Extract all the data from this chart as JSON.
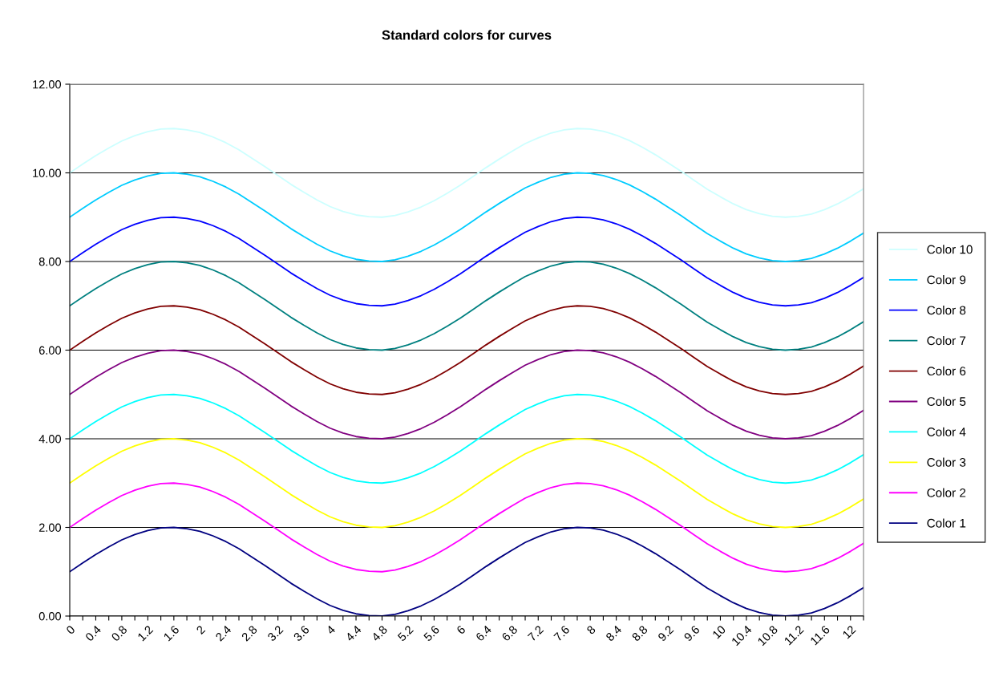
{
  "chart_data": {
    "type": "line",
    "title": "Standard colors for curves",
    "categories": [
      "0",
      null,
      "0.4",
      null,
      "0.8",
      null,
      "1.2",
      null,
      "1.6",
      null,
      "2",
      null,
      "2.4",
      null,
      "2.8",
      null,
      "3.2",
      null,
      "3.6",
      null,
      "4",
      null,
      "4.4",
      null,
      "4.8",
      null,
      "5.2",
      null,
      "5.6",
      null,
      "6",
      null,
      "6.4",
      null,
      "6.8",
      null,
      "7.2",
      null,
      "7.6",
      null,
      "8",
      null,
      "8.4",
      null,
      "8.8",
      null,
      "9.2",
      null,
      "9.6",
      null,
      "10",
      null,
      "10.4",
      null,
      "10.8",
      null,
      "11.2",
      null,
      "11.6",
      null,
      "12",
      null
    ],
    "series": [
      {
        "name": "Color 1",
        "color": "#000080",
        "values": [
          1,
          1.2,
          1.39,
          1.56,
          1.72,
          1.84,
          1.93,
          1.99,
          2,
          1.97,
          1.91,
          1.81,
          1.68,
          1.52,
          1.33,
          1.14,
          0.94,
          0.74,
          0.56,
          0.39,
          0.24,
          0.13,
          0.05,
          0.01,
          0,
          0.04,
          0.12,
          0.23,
          0.37,
          0.54,
          0.72,
          0.92,
          1.12,
          1.31,
          1.49,
          1.66,
          1.79,
          1.9,
          1.97,
          2,
          1.99,
          1.94,
          1.85,
          1.73,
          1.58,
          1.41,
          1.22,
          1.03,
          0.83,
          0.63,
          0.46,
          0.3,
          0.17,
          0.08,
          0.02,
          0,
          0.02,
          0.07,
          0.17,
          0.3,
          0.46,
          0.64
        ]
      },
      {
        "name": "Color 2",
        "color": "#ff00ff",
        "values": [
          2,
          2.2,
          2.39,
          2.56,
          2.72,
          2.84,
          2.93,
          2.99,
          3,
          2.97,
          2.91,
          2.81,
          2.68,
          2.52,
          2.33,
          2.14,
          1.94,
          1.74,
          1.56,
          1.39,
          1.24,
          1.13,
          1.05,
          1.01,
          1,
          1.04,
          1.12,
          1.23,
          1.37,
          1.54,
          1.72,
          1.92,
          2.12,
          2.31,
          2.49,
          2.66,
          2.79,
          2.9,
          2.97,
          3,
          2.99,
          2.94,
          2.85,
          2.73,
          2.58,
          2.41,
          2.22,
          2.03,
          1.83,
          1.63,
          1.46,
          1.3,
          1.17,
          1.08,
          1.02,
          1,
          1.02,
          1.07,
          1.17,
          1.3,
          1.46,
          1.64
        ]
      },
      {
        "name": "Color 3",
        "color": "#ffff00",
        "values": [
          3,
          3.2,
          3.39,
          3.56,
          3.72,
          3.84,
          3.93,
          3.99,
          4,
          3.97,
          3.91,
          3.81,
          3.68,
          3.52,
          3.33,
          3.14,
          2.94,
          2.74,
          2.56,
          2.39,
          2.24,
          2.13,
          2.05,
          2.01,
          2,
          2.04,
          2.12,
          2.23,
          2.37,
          2.54,
          2.72,
          2.92,
          3.12,
          3.31,
          3.49,
          3.66,
          3.79,
          3.9,
          3.97,
          4,
          3.99,
          3.94,
          3.85,
          3.73,
          3.58,
          3.41,
          3.22,
          3.03,
          2.83,
          2.63,
          2.46,
          2.3,
          2.17,
          2.08,
          2.02,
          2,
          2.02,
          2.07,
          2.17,
          2.3,
          2.46,
          2.64
        ]
      },
      {
        "name": "Color 4",
        "color": "#00ffff",
        "values": [
          4,
          4.2,
          4.39,
          4.56,
          4.72,
          4.84,
          4.93,
          4.99,
          5,
          4.97,
          4.91,
          4.81,
          4.68,
          4.52,
          4.33,
          4.14,
          3.94,
          3.74,
          3.56,
          3.39,
          3.24,
          3.13,
          3.05,
          3.01,
          3,
          3.04,
          3.12,
          3.23,
          3.37,
          3.54,
          3.72,
          3.92,
          4.12,
          4.31,
          4.49,
          4.66,
          4.79,
          4.9,
          4.97,
          5,
          4.99,
          4.94,
          4.85,
          4.73,
          4.58,
          4.41,
          4.22,
          4.03,
          3.83,
          3.63,
          3.46,
          3.3,
          3.17,
          3.08,
          3.02,
          3,
          3.02,
          3.07,
          3.17,
          3.3,
          3.46,
          3.64
        ]
      },
      {
        "name": "Color 5",
        "color": "#800080",
        "values": [
          5,
          5.2,
          5.39,
          5.56,
          5.72,
          5.84,
          5.93,
          5.99,
          6,
          5.97,
          5.91,
          5.81,
          5.68,
          5.52,
          5.33,
          5.14,
          4.94,
          4.74,
          4.56,
          4.39,
          4.24,
          4.13,
          4.05,
          4.01,
          4,
          4.04,
          4.12,
          4.23,
          4.37,
          4.54,
          4.72,
          4.92,
          5.12,
          5.31,
          5.49,
          5.66,
          5.79,
          5.9,
          5.97,
          6,
          5.99,
          5.94,
          5.85,
          5.73,
          5.58,
          5.41,
          5.22,
          5.03,
          4.83,
          4.63,
          4.46,
          4.3,
          4.17,
          4.08,
          4.02,
          4,
          4.02,
          4.07,
          4.17,
          4.3,
          4.46,
          4.64
        ]
      },
      {
        "name": "Color 6",
        "color": "#800000",
        "values": [
          6,
          6.2,
          6.39,
          6.56,
          6.72,
          6.84,
          6.93,
          6.99,
          7,
          6.97,
          6.91,
          6.81,
          6.68,
          6.52,
          6.33,
          6.14,
          5.94,
          5.74,
          5.56,
          5.39,
          5.24,
          5.13,
          5.05,
          5.01,
          5,
          5.04,
          5.12,
          5.23,
          5.37,
          5.54,
          5.72,
          5.92,
          6.12,
          6.31,
          6.49,
          6.66,
          6.79,
          6.9,
          6.97,
          7,
          6.99,
          6.94,
          6.85,
          6.73,
          6.58,
          6.41,
          6.22,
          6.03,
          5.83,
          5.63,
          5.46,
          5.3,
          5.17,
          5.08,
          5.02,
          5,
          5.02,
          5.07,
          5.17,
          5.3,
          5.46,
          5.64
        ]
      },
      {
        "name": "Color 7",
        "color": "#008080",
        "values": [
          7,
          7.2,
          7.39,
          7.56,
          7.72,
          7.84,
          7.93,
          7.99,
          8,
          7.97,
          7.91,
          7.81,
          7.68,
          7.52,
          7.33,
          7.14,
          6.94,
          6.74,
          6.56,
          6.39,
          6.24,
          6.13,
          6.05,
          6.01,
          6,
          6.04,
          6.12,
          6.23,
          6.37,
          6.54,
          6.72,
          6.92,
          7.12,
          7.31,
          7.49,
          7.66,
          7.79,
          7.9,
          7.97,
          8,
          7.99,
          7.94,
          7.85,
          7.73,
          7.58,
          7.41,
          7.22,
          7.03,
          6.83,
          6.63,
          6.46,
          6.3,
          6.17,
          6.08,
          6.02,
          6,
          6.02,
          6.07,
          6.17,
          6.3,
          6.46,
          6.64
        ]
      },
      {
        "name": "Color 8",
        "color": "#0000ff",
        "values": [
          8,
          8.2,
          8.39,
          8.56,
          8.72,
          8.84,
          8.93,
          8.99,
          9,
          8.97,
          8.91,
          8.81,
          8.68,
          8.52,
          8.33,
          8.14,
          7.94,
          7.74,
          7.56,
          7.39,
          7.24,
          7.13,
          7.05,
          7.01,
          7,
          7.04,
          7.12,
          7.23,
          7.37,
          7.54,
          7.72,
          7.92,
          8.12,
          8.31,
          8.49,
          8.66,
          8.79,
          8.9,
          8.97,
          9,
          8.99,
          8.94,
          8.85,
          8.73,
          8.58,
          8.41,
          8.22,
          8.03,
          7.83,
          7.63,
          7.46,
          7.3,
          7.17,
          7.08,
          7.02,
          7,
          7.02,
          7.07,
          7.17,
          7.3,
          7.46,
          7.64
        ]
      },
      {
        "name": "Color 9",
        "color": "#00ccff",
        "values": [
          9,
          9.2,
          9.39,
          9.56,
          9.72,
          9.84,
          9.93,
          9.99,
          10,
          9.97,
          9.91,
          9.81,
          9.68,
          9.52,
          9.33,
          9.14,
          8.94,
          8.74,
          8.56,
          8.39,
          8.24,
          8.13,
          8.05,
          8.01,
          8,
          8.04,
          8.12,
          8.23,
          8.37,
          8.54,
          8.72,
          8.92,
          9.12,
          9.31,
          9.49,
          9.66,
          9.79,
          9.9,
          9.97,
          10,
          9.99,
          9.94,
          9.85,
          9.73,
          9.58,
          9.41,
          9.22,
          9.03,
          8.83,
          8.63,
          8.46,
          8.3,
          8.17,
          8.08,
          8.02,
          8,
          8.02,
          8.07,
          8.17,
          8.3,
          8.46,
          8.64
        ]
      },
      {
        "name": "Color 10",
        "color": "#ccffff",
        "values": [
          10,
          10.2,
          10.39,
          10.56,
          10.72,
          10.84,
          10.93,
          10.99,
          11,
          10.97,
          10.91,
          10.81,
          10.68,
          10.52,
          10.33,
          10.14,
          9.94,
          9.74,
          9.56,
          9.39,
          9.24,
          9.13,
          9.05,
          9.01,
          9,
          9.04,
          9.12,
          9.23,
          9.37,
          9.54,
          9.72,
          9.92,
          10.12,
          10.31,
          10.49,
          10.66,
          10.79,
          10.9,
          10.97,
          11,
          10.99,
          10.94,
          10.85,
          10.73,
          10.58,
          10.41,
          10.22,
          10.03,
          9.83,
          9.63,
          9.46,
          9.3,
          9.17,
          9.08,
          9.02,
          9,
          9.02,
          9.07,
          9.17,
          9.3,
          9.46,
          9.64
        ]
      }
    ],
    "ylim": [
      0,
      12
    ],
    "yticks": [
      {
        "value": 0,
        "label": "0.00"
      },
      {
        "value": 2,
        "label": "2.00"
      },
      {
        "value": 4,
        "label": "4.00"
      },
      {
        "value": 6,
        "label": "6.00"
      },
      {
        "value": 8,
        "label": "8.00"
      },
      {
        "value": 10,
        "label": "10.00"
      },
      {
        "value": 12,
        "label": "12.00"
      }
    ],
    "grid": "y",
    "legend": "right",
    "marker": "none",
    "line_style": "solid"
  }
}
